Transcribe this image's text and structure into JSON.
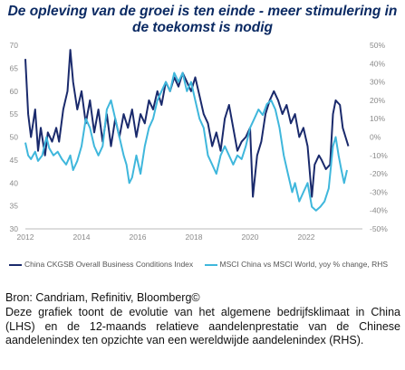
{
  "title": "De opleving van de groei is ten einde - meer stimulering in de toekomst is nodig",
  "chart_data": {
    "type": "line",
    "x_ticks": [
      "2012",
      "2014",
      "2016",
      "2018",
      "2020",
      "2022"
    ],
    "y_left_ticks": [
      "70",
      "65",
      "60",
      "55",
      "50",
      "45",
      "40",
      "35",
      "30"
    ],
    "y_right_ticks": [
      "50%",
      "40%",
      "30%",
      "20%",
      "10%",
      "0%",
      "-10%",
      "-20%",
      "-30%",
      "-40%",
      "-50%"
    ],
    "y_left_range": [
      30,
      70
    ],
    "y_right_range": [
      -50,
      50
    ],
    "x_range": [
      2012,
      2024
    ],
    "grid": false,
    "legend_position": "bottom",
    "series": [
      {
        "name": "China CKGSB Overall Business Conditions Index",
        "axis": "left",
        "color": "#1a2a6c",
        "points": [
          [
            2012.0,
            67
          ],
          [
            2012.1,
            55
          ],
          [
            2012.2,
            50
          ],
          [
            2012.35,
            56
          ],
          [
            2012.45,
            47
          ],
          [
            2012.55,
            52
          ],
          [
            2012.7,
            46
          ],
          [
            2012.8,
            51
          ],
          [
            2012.95,
            49
          ],
          [
            2013.1,
            52
          ],
          [
            2013.2,
            49
          ],
          [
            2013.35,
            56
          ],
          [
            2013.5,
            60
          ],
          [
            2013.6,
            69
          ],
          [
            2013.7,
            62
          ],
          [
            2013.85,
            56
          ],
          [
            2014.0,
            60
          ],
          [
            2014.15,
            53
          ],
          [
            2014.3,
            58
          ],
          [
            2014.45,
            51
          ],
          [
            2014.6,
            56
          ],
          [
            2014.75,
            49
          ],
          [
            2014.9,
            55
          ],
          [
            2015.05,
            48
          ],
          [
            2015.2,
            54
          ],
          [
            2015.35,
            50
          ],
          [
            2015.5,
            55
          ],
          [
            2015.65,
            52
          ],
          [
            2015.8,
            56
          ],
          [
            2015.95,
            50
          ],
          [
            2016.1,
            55
          ],
          [
            2016.25,
            53
          ],
          [
            2016.4,
            58
          ],
          [
            2016.55,
            56
          ],
          [
            2016.7,
            60
          ],
          [
            2016.85,
            57
          ],
          [
            2017.0,
            62
          ],
          [
            2017.15,
            60
          ],
          [
            2017.3,
            63
          ],
          [
            2017.45,
            61
          ],
          [
            2017.6,
            64
          ],
          [
            2017.75,
            62
          ],
          [
            2017.9,
            60
          ],
          [
            2018.05,
            63
          ],
          [
            2018.2,
            59
          ],
          [
            2018.35,
            55
          ],
          [
            2018.5,
            53
          ],
          [
            2018.65,
            48
          ],
          [
            2018.8,
            51
          ],
          [
            2018.95,
            47
          ],
          [
            2019.1,
            54
          ],
          [
            2019.25,
            57
          ],
          [
            2019.4,
            52
          ],
          [
            2019.55,
            47
          ],
          [
            2019.7,
            49
          ],
          [
            2019.85,
            50
          ],
          [
            2020.0,
            52
          ],
          [
            2020.1,
            37
          ],
          [
            2020.25,
            46
          ],
          [
            2020.4,
            49
          ],
          [
            2020.55,
            55
          ],
          [
            2020.7,
            58
          ],
          [
            2020.85,
            60
          ],
          [
            2021.0,
            58
          ],
          [
            2021.15,
            55
          ],
          [
            2021.3,
            57
          ],
          [
            2021.45,
            53
          ],
          [
            2021.6,
            55
          ],
          [
            2021.75,
            50
          ],
          [
            2021.9,
            52
          ],
          [
            2022.05,
            48
          ],
          [
            2022.2,
            37
          ],
          [
            2022.3,
            44
          ],
          [
            2022.45,
            46
          ],
          [
            2022.55,
            45
          ],
          [
            2022.7,
            43
          ],
          [
            2022.85,
            44
          ],
          [
            2022.95,
            55
          ],
          [
            2023.05,
            58
          ],
          [
            2023.2,
            57
          ],
          [
            2023.3,
            52
          ],
          [
            2023.4,
            50
          ],
          [
            2023.5,
            48
          ]
        ]
      },
      {
        "name": "MSCI China vs MSCI World, yoy % change, RHS",
        "axis": "right",
        "color": "#3fb7dc",
        "points": [
          [
            2012.0,
            -3
          ],
          [
            2012.1,
            -10
          ],
          [
            2012.2,
            -12
          ],
          [
            2012.35,
            -8
          ],
          [
            2012.45,
            -13
          ],
          [
            2012.6,
            -10
          ],
          [
            2012.75,
            0
          ],
          [
            2012.85,
            -6
          ],
          [
            2013.0,
            -10
          ],
          [
            2013.15,
            -8
          ],
          [
            2013.3,
            -12
          ],
          [
            2013.45,
            -15
          ],
          [
            2013.6,
            -10
          ],
          [
            2013.7,
            -18
          ],
          [
            2013.85,
            -13
          ],
          [
            2014.0,
            -5
          ],
          [
            2014.15,
            10
          ],
          [
            2014.3,
            5
          ],
          [
            2014.45,
            -5
          ],
          [
            2014.6,
            -10
          ],
          [
            2014.75,
            -5
          ],
          [
            2014.9,
            15
          ],
          [
            2015.05,
            20
          ],
          [
            2015.2,
            10
          ],
          [
            2015.35,
            0
          ],
          [
            2015.5,
            -10
          ],
          [
            2015.6,
            -15
          ],
          [
            2015.7,
            -25
          ],
          [
            2015.8,
            -22
          ],
          [
            2015.95,
            -10
          ],
          [
            2016.1,
            -20
          ],
          [
            2016.25,
            -5
          ],
          [
            2016.4,
            5
          ],
          [
            2016.55,
            10
          ],
          [
            2016.7,
            20
          ],
          [
            2016.85,
            25
          ],
          [
            2017.0,
            30
          ],
          [
            2017.15,
            25
          ],
          [
            2017.3,
            35
          ],
          [
            2017.45,
            30
          ],
          [
            2017.6,
            35
          ],
          [
            2017.75,
            25
          ],
          [
            2017.9,
            30
          ],
          [
            2018.05,
            20
          ],
          [
            2018.2,
            10
          ],
          [
            2018.35,
            5
          ],
          [
            2018.5,
            -10
          ],
          [
            2018.65,
            -15
          ],
          [
            2018.8,
            -20
          ],
          [
            2018.95,
            -10
          ],
          [
            2019.1,
            -5
          ],
          [
            2019.25,
            -10
          ],
          [
            2019.4,
            -15
          ],
          [
            2019.55,
            -10
          ],
          [
            2019.7,
            -12
          ],
          [
            2019.85,
            -5
          ],
          [
            2020.0,
            5
          ],
          [
            2020.15,
            10
          ],
          [
            2020.3,
            15
          ],
          [
            2020.45,
            12
          ],
          [
            2020.6,
            18
          ],
          [
            2020.75,
            20
          ],
          [
            2020.9,
            15
          ],
          [
            2021.05,
            5
          ],
          [
            2021.2,
            -10
          ],
          [
            2021.35,
            -20
          ],
          [
            2021.5,
            -30
          ],
          [
            2021.6,
            -25
          ],
          [
            2021.75,
            -35
          ],
          [
            2021.9,
            -30
          ],
          [
            2022.05,
            -25
          ],
          [
            2022.2,
            -38
          ],
          [
            2022.35,
            -40
          ],
          [
            2022.5,
            -38
          ],
          [
            2022.65,
            -35
          ],
          [
            2022.8,
            -28
          ],
          [
            2022.95,
            -5
          ],
          [
            2023.05,
            0
          ],
          [
            2023.15,
            -10
          ],
          [
            2023.25,
            -18
          ],
          [
            2023.35,
            -25
          ],
          [
            2023.45,
            -18
          ]
        ]
      }
    ]
  },
  "source": "Bron: Candriam, Refinitiv, Bloomberg©",
  "description": "Deze grafiek toont de evolutie van het algemene bedrijfsklimaat in China (LHS) en de 12-maands relatieve aandelenprestatie van de Chinese aandelenindex ten opzichte van een wereldwijde aandelenindex (RHS).",
  "colors": {
    "title": "#0b2a63",
    "axis": "#8a8a8a"
  }
}
